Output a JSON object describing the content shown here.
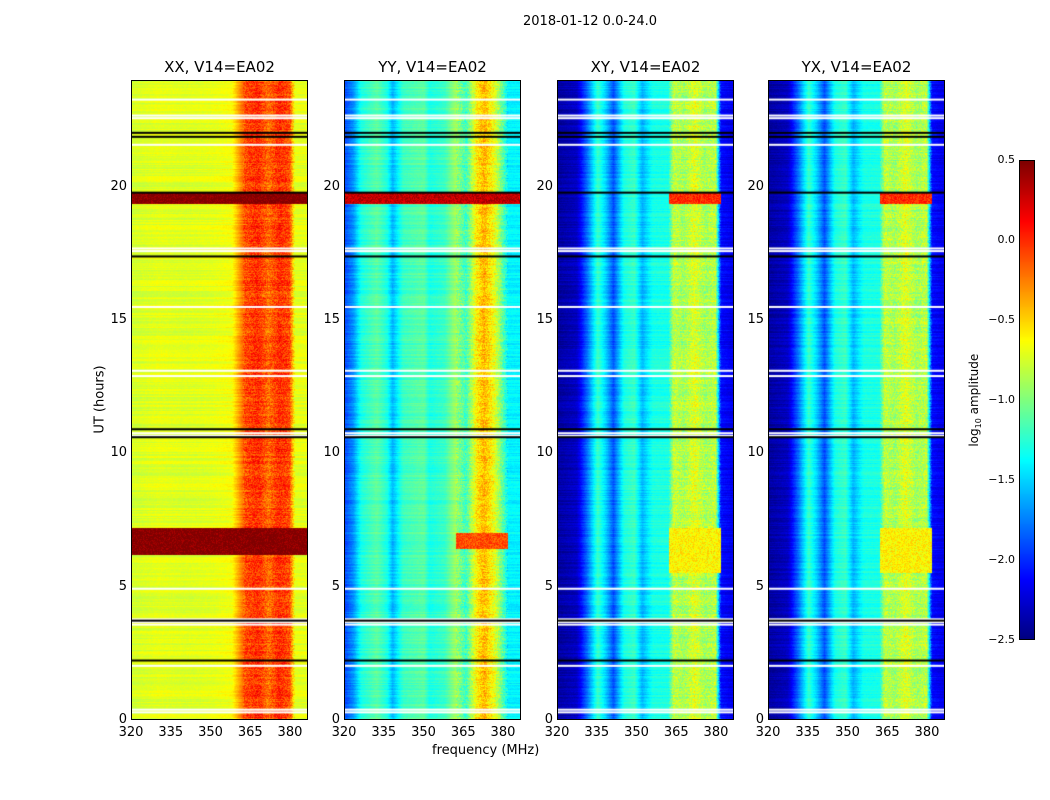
{
  "chart_data": {
    "type": "heatmap",
    "title": "2018-01-12 0.0-24.0",
    "xlabel": "frequency (MHz)",
    "ylabel": "UT (hours)",
    "xlim": [
      320,
      386.8
    ],
    "ylim": [
      0,
      24
    ],
    "xticks": [
      "320",
      "335",
      "350",
      "365",
      "380"
    ],
    "xtick_values": [
      320,
      335,
      350,
      365,
      380
    ],
    "yticks": [
      "0",
      "5",
      "10",
      "15",
      "20"
    ],
    "ytick_values": [
      0,
      5,
      10,
      15,
      20
    ],
    "colorbar": {
      "label_prefix": "log",
      "label_sub": "10",
      "label_suffix": " amplitude",
      "colormap": "jet",
      "range": [
        -2.5,
        0.5
      ],
      "ticks": [
        "0.5",
        "0.0",
        "−0.5",
        "−1.0",
        "−1.5",
        "−2.0",
        "−2.5"
      ],
      "tick_values": [
        0.5,
        0.0,
        -0.5,
        -1.0,
        -1.5,
        -2.0,
        -2.5
      ]
    },
    "panels": [
      {
        "title": "XX, V14=EA02",
        "profile": [
          [
            320,
            -0.75
          ],
          [
            330,
            -0.7
          ],
          [
            340,
            -0.72
          ],
          [
            350,
            -0.7
          ],
          [
            358,
            -0.65
          ],
          [
            363,
            -0.1
          ],
          [
            368,
            0.0
          ],
          [
            372,
            -0.2
          ],
          [
            376,
            0.0
          ],
          [
            380,
            -0.1
          ],
          [
            382,
            -0.7
          ],
          [
            387,
            -0.7
          ]
        ],
        "bursts": [
          [
            6.2,
            7.2,
            0.5
          ],
          [
            19.4,
            19.8,
            0.5
          ]
        ]
      },
      {
        "title": "YY, V14=EA02",
        "profile": [
          [
            320,
            -1.9
          ],
          [
            323,
            -1.7
          ],
          [
            326,
            -1.3
          ],
          [
            332,
            -1.1
          ],
          [
            336,
            -1.3
          ],
          [
            338,
            -1.6
          ],
          [
            342,
            -1.2
          ],
          [
            350,
            -1.1
          ],
          [
            352,
            -1.3
          ],
          [
            358,
            -1.2
          ],
          [
            362,
            -0.9
          ],
          [
            366,
            -1.2
          ],
          [
            370,
            -0.6
          ],
          [
            373,
            -0.4
          ],
          [
            377,
            -0.7
          ],
          [
            380,
            -1.1
          ],
          [
            382,
            -1.4
          ],
          [
            387,
            -1.4
          ]
        ],
        "bursts": [
          [
            6.4,
            7.0,
            -0.1
          ],
          [
            19.4,
            19.8,
            0.3
          ]
        ]
      },
      {
        "title": "XY, V14=EA02",
        "profile": [
          [
            320,
            -2.4
          ],
          [
            327,
            -2.3
          ],
          [
            331,
            -1.8
          ],
          [
            335,
            -1.2
          ],
          [
            338,
            -1.5
          ],
          [
            341,
            -1.9
          ],
          [
            345,
            -1.3
          ],
          [
            349,
            -1.2
          ],
          [
            352,
            -1.6
          ],
          [
            356,
            -1.3
          ],
          [
            362,
            -1.3
          ],
          [
            364,
            -0.8
          ],
          [
            368,
            -0.9
          ],
          [
            372,
            -0.7
          ],
          [
            376,
            -0.9
          ],
          [
            380,
            -0.8
          ],
          [
            382,
            -2.1
          ],
          [
            387,
            -2.2
          ]
        ],
        "bursts": [
          [
            5.5,
            7.2,
            -0.6
          ],
          [
            19.4,
            19.8,
            0.0
          ]
        ]
      },
      {
        "title": "YX, V14=EA02",
        "profile": [
          [
            320,
            -2.4
          ],
          [
            327,
            -2.3
          ],
          [
            331,
            -1.8
          ],
          [
            335,
            -1.2
          ],
          [
            338,
            -1.5
          ],
          [
            341,
            -1.9
          ],
          [
            345,
            -1.3
          ],
          [
            349,
            -1.2
          ],
          [
            352,
            -1.6
          ],
          [
            356,
            -1.3
          ],
          [
            362,
            -1.3
          ],
          [
            364,
            -0.8
          ],
          [
            368,
            -0.9
          ],
          [
            372,
            -0.7
          ],
          [
            376,
            -0.9
          ],
          [
            380,
            -0.8
          ],
          [
            382,
            -2.1
          ],
          [
            387,
            -2.2
          ]
        ],
        "bursts": [
          [
            5.5,
            7.2,
            -0.6
          ],
          [
            19.4,
            19.8,
            0.0
          ]
        ]
      }
    ],
    "flagged_hours": [
      0.25,
      0.35,
      2.0,
      3.55,
      3.65,
      3.75,
      4.9,
      10.65,
      10.75,
      12.9,
      13.1,
      15.5,
      17.6,
      17.7,
      21.6,
      22.6,
      22.7,
      23.3
    ],
    "gap_lines_hours": [
      2.2,
      3.7,
      10.6,
      10.9,
      17.4,
      19.8,
      21.9,
      22.05
    ]
  }
}
